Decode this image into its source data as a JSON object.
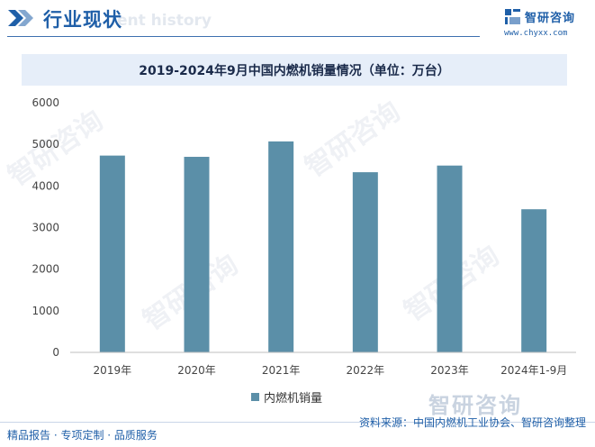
{
  "header": {
    "title": "行业现状",
    "ghost_text": "ent history",
    "icon": "double-chevron-right-icon"
  },
  "brand": {
    "name": "智研咨询",
    "url": "www.chyxx.com",
    "logo_icon": "zhiyan-logo-icon",
    "watermark": "智研咨询"
  },
  "colors": {
    "accent": "#1f5fa8",
    "bar": "#5b8fa8",
    "title_band": "#e6eef9"
  },
  "chart_data": {
    "type": "bar",
    "title": "2019-2024年9月中国内燃机销量情况（单位：万台）",
    "categories": [
      "2019年",
      "2020年",
      "2021年",
      "2022年",
      "2023年",
      "2024年1-9月"
    ],
    "series": [
      {
        "name": "内燃机销量",
        "values": [
          4730,
          4700,
          5070,
          4330,
          4490,
          3440
        ]
      }
    ],
    "ylim": [
      0,
      6000
    ],
    "yticks": [
      0,
      1000,
      2000,
      3000,
      4000,
      5000,
      6000
    ],
    "grid": false,
    "legend": "bottom-center"
  },
  "footer": {
    "left": "精品报告 · 专项定制 · 品质服务",
    "source": "资料来源：中国内燃机工业协会、智研咨询整理"
  }
}
